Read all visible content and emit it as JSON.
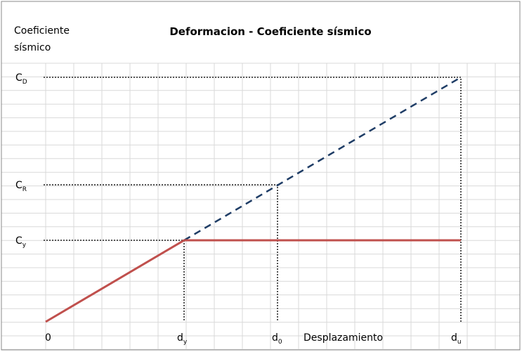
{
  "title": "Deformacion - Coeficiente sísmico",
  "y_axis_label": [
    "Coeficiente",
    "sísmico"
  ],
  "x_axis_label": "Desplazamiento",
  "y_labels": [
    {
      "main": "C",
      "sub": "D"
    },
    {
      "main": "C",
      "sub": "R"
    },
    {
      "main": "C",
      "sub": "y"
    }
  ],
  "x_labels": [
    {
      "main": "0"
    },
    {
      "main": "d",
      "sub": "y"
    },
    {
      "main": "d",
      "sub": "0"
    },
    {
      "main": "d",
      "sub": "u"
    }
  ]
}
